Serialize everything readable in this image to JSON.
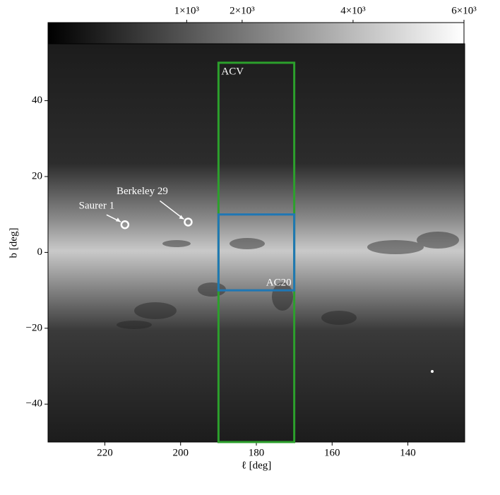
{
  "chart_data": {
    "type": "image",
    "xlabel": "ℓ [deg]",
    "ylabel": "b [deg]",
    "xlim": [
      235,
      125
    ],
    "ylim": [
      -50,
      55
    ],
    "xticks": [
      220,
      200,
      180,
      160,
      140
    ],
    "yticks": [
      {
        "value": -40,
        "label": "−40"
      },
      {
        "value": -20,
        "label": "−20"
      },
      0,
      20,
      40
    ],
    "colorbar": {
      "clim": [
        -1500,
        6000
      ],
      "ticks": [
        {
          "value": 1000,
          "label": "1×10³"
        },
        {
          "value": 2000,
          "label": "2×10³"
        },
        {
          "value": 4000,
          "label": "4×10³"
        },
        {
          "value": 6000,
          "label": "6×10³"
        }
      ]
    },
    "regions": [
      {
        "name": "ACV",
        "l": [
          190,
          170
        ],
        "b": [
          -50,
          50
        ],
        "color": "#2ca02c"
      },
      {
        "name": "AC20",
        "l": [
          190,
          170
        ],
        "b": [
          -10,
          10
        ],
        "color": "#1f77b4"
      }
    ],
    "clusters": [
      {
        "name": "Saurer 1",
        "l": 214.7,
        "b": 7.3
      },
      {
        "name": "Berkeley 29",
        "l": 198.0,
        "b": 8.0
      }
    ]
  }
}
